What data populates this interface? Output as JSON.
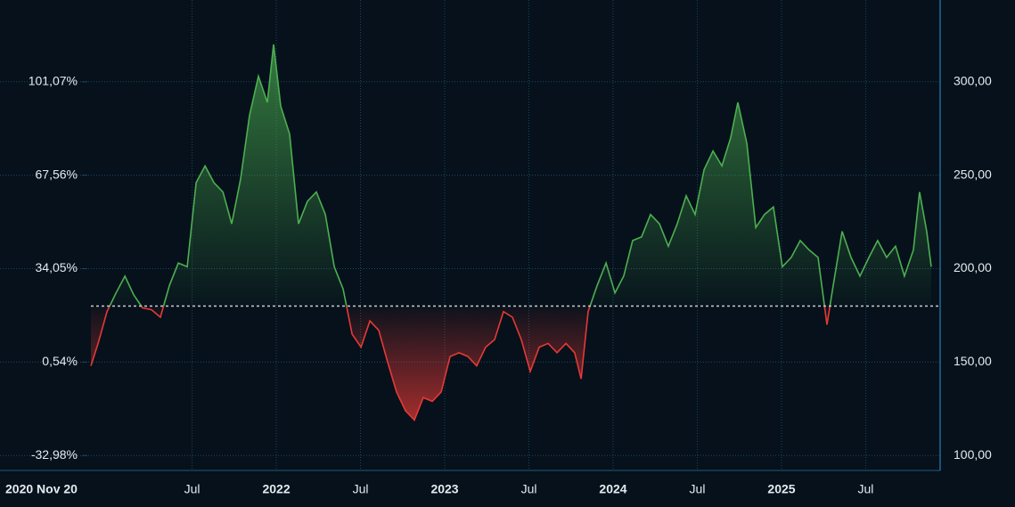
{
  "chart_data": {
    "type": "line",
    "x": [
      2020.899,
      2020.942,
      2020.995,
      2021.048,
      2021.101,
      2021.153,
      2021.206,
      2021.259,
      2021.312,
      2021.365,
      2021.418,
      2021.471,
      2021.524,
      2021.577,
      2021.63,
      2021.683,
      2021.735,
      2021.788,
      2021.841,
      2021.894,
      2021.947,
      2021.984,
      2022.026,
      2022.079,
      2022.132,
      2022.185,
      2022.238,
      2022.291,
      2022.344,
      2022.397,
      2022.45,
      2022.503,
      2022.556,
      2022.608,
      2022.661,
      2022.714,
      2022.767,
      2022.82,
      2022.873,
      2022.926,
      2022.979,
      2023.032,
      2023.085,
      2023.138,
      2023.19,
      2023.243,
      2023.296,
      2023.349,
      2023.402,
      2023.455,
      2023.508,
      2023.561,
      2023.614,
      2023.667,
      2023.72,
      2023.772,
      2023.81,
      2023.852,
      2023.905,
      2023.958,
      2024.011,
      2024.063,
      2024.116,
      2024.169,
      2024.222,
      2024.275,
      2024.328,
      2024.381,
      2024.434,
      2024.487,
      2024.54,
      2024.593,
      2024.646,
      2024.698,
      2024.741,
      2024.794,
      2024.847,
      2024.899,
      2024.952,
      2025.005,
      2025.058,
      2025.111,
      2025.164,
      2025.217,
      2025.27,
      2025.307,
      2025.36,
      2025.413,
      2025.466,
      2025.519,
      2025.571,
      2025.624,
      2025.677,
      2025.73,
      2025.783,
      2025.82,
      2025.862,
      2025.889
    ],
    "values": [
      148,
      160,
      177,
      187,
      196,
      186,
      179,
      178,
      174,
      191,
      203,
      201,
      246,
      255,
      246,
      241,
      224,
      248,
      282,
      303,
      289,
      320,
      287,
      272,
      224,
      236,
      241,
      229,
      201,
      189,
      165,
      158,
      172,
      167,
      150,
      134,
      124,
      119,
      131,
      129,
      134,
      153,
      155,
      153,
      148,
      158,
      162,
      177,
      174,
      162,
      145,
      158,
      160,
      155,
      160,
      155,
      141,
      177,
      191,
      203,
      187,
      196,
      215,
      217,
      229,
      224,
      212,
      224,
      239,
      229,
      253,
      263,
      255,
      270,
      289,
      267,
      222,
      229,
      233,
      201,
      206,
      215,
      210,
      206,
      170,
      191,
      220,
      206,
      196,
      206,
      215,
      206,
      212,
      196,
      210,
      241,
      220,
      201
    ],
    "up_color": "#4caf50",
    "down_color": "#e53935",
    "baseline": 180,
    "xlim": [
      2020.899,
      2025.942
    ],
    "xticks": [
      {
        "value": 2020.899,
        "label": "2020 Nov 20"
      },
      {
        "value": 2021.5,
        "label": "Jul"
      },
      2022,
      {
        "value": 2022.5,
        "label": "Jul"
      },
      2023,
      {
        "value": 2023.5,
        "label": "Jul"
      },
      2024,
      {
        "value": 2024.5,
        "label": "Jul"
      },
      2025,
      {
        "value": 2025.5,
        "label": "Jul"
      }
    ],
    "ylim": [
      92,
      339
    ],
    "yticks": [
      {
        "value": 100,
        "label": "100,00"
      },
      {
        "value": 150,
        "label": "150,00"
      },
      {
        "value": 200,
        "label": "200,00"
      },
      {
        "value": 250,
        "label": "250,00"
      },
      {
        "value": 300,
        "label": "300,00"
      }
    ],
    "y2lim": [
      -38.33,
      127.22
    ],
    "y2ticks": [
      {
        "value": -32.98,
        "label": "-32,98%"
      },
      {
        "value": 0.54,
        "label": "0,54%"
      },
      {
        "value": 34.05,
        "label": "34,05%"
      },
      {
        "value": 67.56,
        "label": "67,56%"
      },
      {
        "value": 101.07,
        "label": "101,07%"
      }
    ],
    "grid": true
  }
}
